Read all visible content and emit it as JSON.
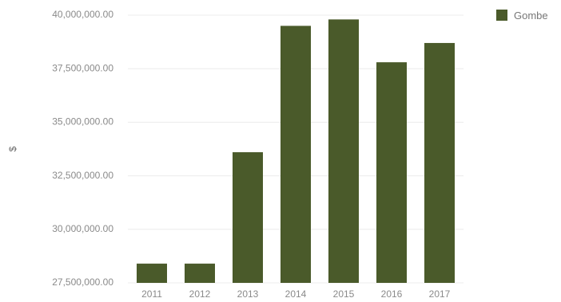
{
  "chart_data": {
    "type": "bar",
    "categories": [
      "2011",
      "2012",
      "2013",
      "2014",
      "2015",
      "2016",
      "2017"
    ],
    "series": [
      {
        "name": "Gombe",
        "values": [
          28400000,
          28400000,
          33600000,
          39500000,
          39800000,
          37800000,
          38700000
        ]
      }
    ],
    "ylabel": "$",
    "ylim": [
      27500000,
      40000000
    ],
    "yticks": [
      27500000,
      30000000,
      32500000,
      35000000,
      37500000,
      40000000
    ],
    "ytick_labels": [
      "27,500,000.00",
      "30,000,000.00",
      "32,500,000.00",
      "35,000,000.00",
      "37,500,000.00",
      "40,000,000.00"
    ],
    "grid": true,
    "legend_position": "top-right",
    "colors": {
      "bar": "#4a5a2a"
    }
  }
}
